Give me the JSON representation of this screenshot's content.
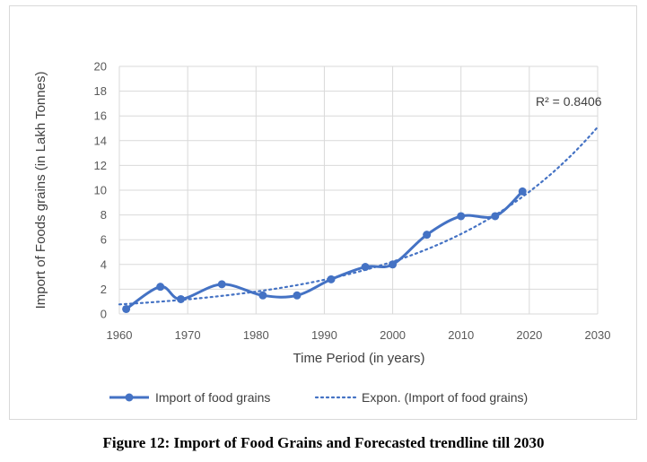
{
  "caption": "Figure 12: Import of Food Grains and Forecasted trendline till 2030",
  "chart_data": {
    "type": "line",
    "xlabel": "Time Period (in years)",
    "ylabel": "Import of Foods grains (in Lakh Tonnes)",
    "xlim": [
      1960,
      2030
    ],
    "ylim": [
      0,
      20
    ],
    "xticks": [
      1960,
      1970,
      1980,
      1990,
      2000,
      2010,
      2020,
      2030
    ],
    "yticks": [
      0,
      2,
      4,
      6,
      8,
      10,
      12,
      14,
      16,
      18,
      20
    ],
    "grid": "horizontal",
    "legend_position": "bottom",
    "series": [
      {
        "name": "Import of food grains",
        "color": "#4472c4",
        "style": "smooth line with markers",
        "x": [
          1961,
          1966,
          1969,
          1975,
          1981,
          1986,
          1991,
          1996,
          2000,
          2005,
          2010,
          2015,
          2019
        ],
        "values": [
          0.4,
          2.2,
          1.2,
          2.4,
          1.5,
          1.5,
          2.8,
          3.8,
          4.0,
          6.4,
          7.9,
          7.9,
          9.9
        ]
      },
      {
        "name": "Expon. (Import of food grains)",
        "color": "#4472c4",
        "style": "dotted trendline",
        "model": {
          "type": "exponential",
          "a": 0.7735,
          "b": 0.04245,
          "x0": 1960
        }
      }
    ],
    "annotations": [
      {
        "text": "R² = 0.8406"
      }
    ]
  }
}
